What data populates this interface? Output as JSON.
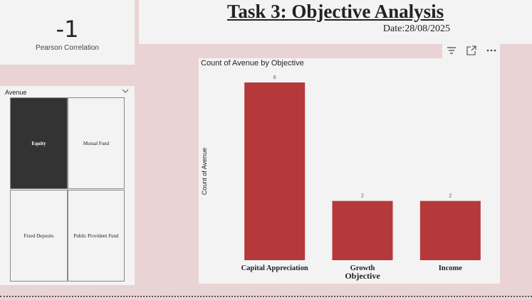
{
  "kpi": {
    "value": "-1",
    "label": "Pearson Correlation"
  },
  "header": {
    "title": "Task 3: Objective Analysis",
    "date": "Date:28/08/2025"
  },
  "slicer": {
    "title": "Avenue",
    "items": [
      {
        "label": "Equity",
        "selected": true
      },
      {
        "label": "Mutual Fund",
        "selected": false
      },
      {
        "label": "Fixed Deposits",
        "selected": false
      },
      {
        "label": "Public Provident Fund",
        "selected": false
      }
    ]
  },
  "visual_header": {
    "icons": [
      "filter-icon",
      "focus-mode-icon",
      "more-options-icon"
    ]
  },
  "chart_data": {
    "type": "bar",
    "title": "Count of Avenue by Objective",
    "xlabel": "Objective",
    "ylabel": "Count of Avenue",
    "categories": [
      "Capital Appreciation",
      "Growth",
      "Income"
    ],
    "values": [
      6,
      2,
      2
    ],
    "data_labels": [
      "6",
      "2",
      "2"
    ],
    "ylim": [
      0,
      6
    ],
    "bar_color": "#b5393b",
    "grid": false
  }
}
